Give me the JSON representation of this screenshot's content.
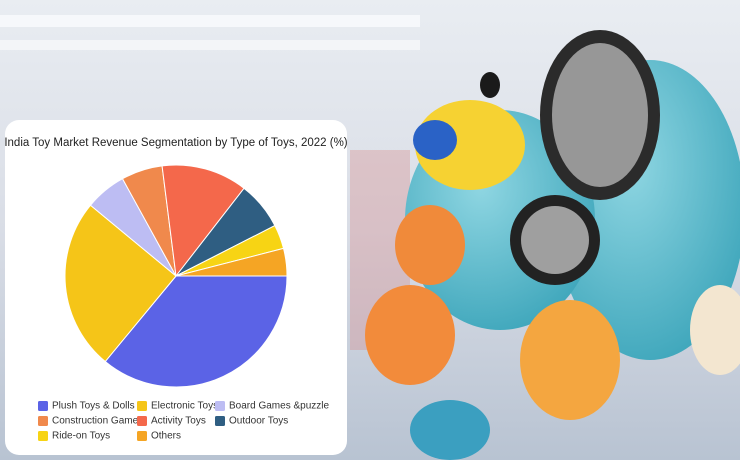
{
  "chart_data": {
    "type": "pie",
    "title": "India Toy Market Revenue Segmentation by Type of Toys, 2022 (%)",
    "categories": [
      "Plush Toys & Dolls",
      "Electronic Toys",
      "Board Games &puzzle",
      "Construction Games",
      "Activity Toys",
      "Outdoor Toys",
      "Ride-on Toys",
      "Others"
    ],
    "values": [
      36,
      25,
      6,
      6,
      12.5,
      7,
      3.5,
      4
    ],
    "colors": [
      "#5b63e6",
      "#f5c518",
      "#bdbdf3",
      "#f0894c",
      "#f4684b",
      "#2f5e82",
      "#f7d414",
      "#f5a524"
    ]
  }
}
